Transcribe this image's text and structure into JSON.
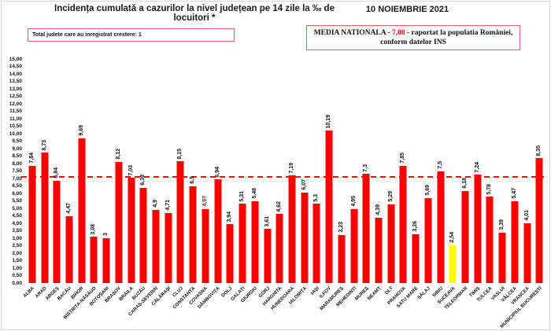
{
  "header": {
    "title": "Incidența cumulată a cazurilor la nivel județean pe 14 zile la ‰ de locuitori *",
    "date": "10 NOIEMBRIE 2021"
  },
  "info_boxes": {
    "growth_box": "Total judete care au inregistrat crestere: 1",
    "national_average": {
      "prefix": "MEDIA NATIONALA - ",
      "value": "7,08",
      "suffix": " -  raportat la populatia  României,",
      "line2": "conform datelor INS"
    }
  },
  "colors": {
    "bar": "#FF0000",
    "highlight_bar": "#FFFF00",
    "dashed_line": "#FF0000",
    "value_highlight": "#FF0000",
    "box_border": "#D06A6A"
  },
  "chart_data": {
    "type": "bar",
    "title": "Incidența cumulată a cazurilor la nivel județean pe 14 zile la ‰ de locuitori *",
    "xlabel": "",
    "ylabel": "",
    "ylim": [
      0,
      15
    ],
    "ytick_step": 0.5,
    "grid": false,
    "average_line_value": 7.08,
    "yticks": [
      "15,00",
      "14,50",
      "14,00",
      "13,50",
      "13,00",
      "12,50",
      "12,00",
      "11,50",
      "11,00",
      "10,50",
      "10,00",
      "9,50",
      "9,00",
      "8,50",
      "8,00",
      "7,50",
      "7,00",
      "6,50",
      "6,00",
      "5,50",
      "5,00",
      "4,50",
      "4,00",
      "3,50",
      "3,00",
      "2,50",
      "2,00",
      "1,50",
      "1,00",
      "0,50",
      "0,00"
    ],
    "increase_arrow_icon": "→",
    "bars": [
      {
        "county": "ALBA",
        "label": "7,84",
        "value": 7.84
      },
      {
        "county": "ARAD",
        "label": "8,73",
        "value": 8.73
      },
      {
        "county": "ARGEȘ",
        "label": "6,84",
        "value": 6.84
      },
      {
        "county": "BACĂU",
        "label": "4,47",
        "value": 4.47
      },
      {
        "county": "BIHOR",
        "label": "9,69",
        "value": 9.69
      },
      {
        "county": "BISTRIȚA-NĂSĂUD",
        "label": "3,08",
        "value": 3.08
      },
      {
        "county": "BOTOȘANI",
        "label": "3",
        "value": 3
      },
      {
        "county": "BRAȘOV",
        "label": "8,12",
        "value": 8.12
      },
      {
        "county": "BRĂILA",
        "label": "7,03",
        "value": 7.03
      },
      {
        "county": "BUZĂU",
        "label": "6,39",
        "value": 6.39
      },
      {
        "county": "CARAȘ-SEVERIN",
        "label": "4,9",
        "value": 4.9
      },
      {
        "county": "CĂLĂRAȘI",
        "label": "4,71",
        "value": 4.71
      },
      {
        "county": "CLUJ",
        "label": "8,15",
        "value": 8.15
      },
      {
        "county": "CONSTANȚA",
        "label": "6,5",
        "value": 6.5
      },
      {
        "county": "COVASNA",
        "label": "4,97",
        "value": 4.97,
        "value_color": "red",
        "increase_marker": true
      },
      {
        "county": "DÂMBOVIȚA",
        "label": "6,94",
        "value": 6.94
      },
      {
        "county": "DOLJ",
        "label": "3,94",
        "value": 3.94
      },
      {
        "county": "GALAȚI",
        "label": "5,31",
        "value": 5.31
      },
      {
        "county": "GIURGIU",
        "label": "5,48",
        "value": 5.48
      },
      {
        "county": "GORJ",
        "label": "3,61",
        "value": 3.61
      },
      {
        "county": "HARGHITA",
        "label": "4,62",
        "value": 4.62
      },
      {
        "county": "HUNEDOARA",
        "label": "7,19",
        "value": 7.19
      },
      {
        "county": "IALOMIȚA",
        "label": "6,07",
        "value": 6.07
      },
      {
        "county": "IAȘI",
        "label": "5,3",
        "value": 5.3
      },
      {
        "county": "ILFOV",
        "label": "10,19",
        "value": 10.19
      },
      {
        "county": "MARAMUREȘ",
        "label": "3,23",
        "value": 3.23
      },
      {
        "county": "MEHEDINȚI",
        "label": "4,95",
        "value": 4.95
      },
      {
        "county": "MUREȘ",
        "label": "7,3",
        "value": 7.3
      },
      {
        "county": "NEAMȚ",
        "label": "4,39",
        "value": 4.39
      },
      {
        "county": "OLT",
        "label": "5,29",
        "value": 5.29
      },
      {
        "county": "PRAHOVA",
        "label": "7,85",
        "value": 7.85
      },
      {
        "county": "SATU MARE",
        "label": "3,26",
        "value": 3.26
      },
      {
        "county": "SĂLAJ",
        "label": "5,69",
        "value": 5.69
      },
      {
        "county": "SIBIU",
        "label": "7,5",
        "value": 7.5
      },
      {
        "county": "SUCEAVA",
        "label": "2,54",
        "value": 2.54,
        "highlight": true
      },
      {
        "county": "TELEORMAN",
        "label": "6,18",
        "value": 6.18
      },
      {
        "county": "TIMIȘ",
        "label": "7,24",
        "value": 7.24
      },
      {
        "county": "TULCEA",
        "label": "5,78",
        "value": 5.78
      },
      {
        "county": "VASLUI",
        "label": "3,39",
        "value": 3.39
      },
      {
        "county": "VÂLCEA",
        "label": "5,47",
        "value": 5.47
      },
      {
        "county": "VRANCEA",
        "label": "4,01",
        "value": 4.01
      },
      {
        "county": "MUNICIPIUL BUCUREȘTI",
        "label": "8,35",
        "value": 8.35
      }
    ]
  }
}
